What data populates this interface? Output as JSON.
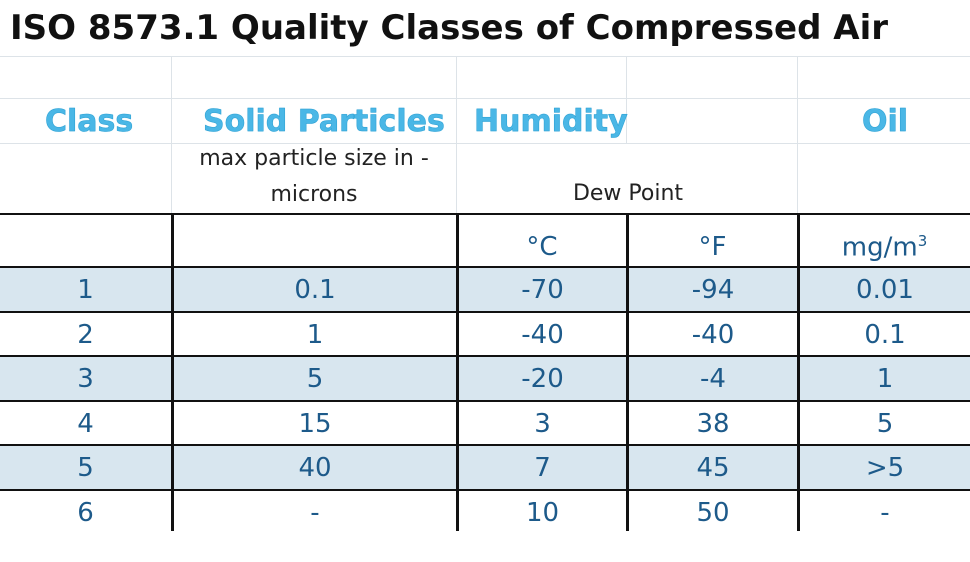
{
  "title": "ISO 8573.1 Quality Classes of Compressed Air",
  "headers": {
    "class": "Class",
    "solid": "Solid Particles",
    "humidity": "Humidity",
    "oil": "Oil"
  },
  "subheaders": {
    "solid_line1": "max particle size in -",
    "solid_line2": "microns",
    "dew_point": "Dew Point"
  },
  "units": {
    "celsius": "°C",
    "fahrenheit": "°F",
    "oil_base": "mg/m",
    "oil_exp": "3"
  },
  "rows": [
    {
      "class": "1",
      "solid": "0.1",
      "c": "-70",
      "f": "-94",
      "oil": "0.01"
    },
    {
      "class": "2",
      "solid": "1",
      "c": "-40",
      "f": "-40",
      "oil": "0.1"
    },
    {
      "class": "3",
      "solid": "5",
      "c": "-20",
      "f": "-4",
      "oil": "1"
    },
    {
      "class": "4",
      "solid": "15",
      "c": "3",
      "f": "38",
      "oil": "5"
    },
    {
      "class": "5",
      "solid": "40",
      "c": "7",
      "f": "45",
      "oil": ">5"
    },
    {
      "class": "6",
      "solid": "-",
      "c": "10",
      "f": "50",
      "oil": "-"
    }
  ],
  "colors": {
    "header_text": "#4ab7e6",
    "cell_text": "#1d5a8a",
    "shade": "#d8e6ef"
  }
}
